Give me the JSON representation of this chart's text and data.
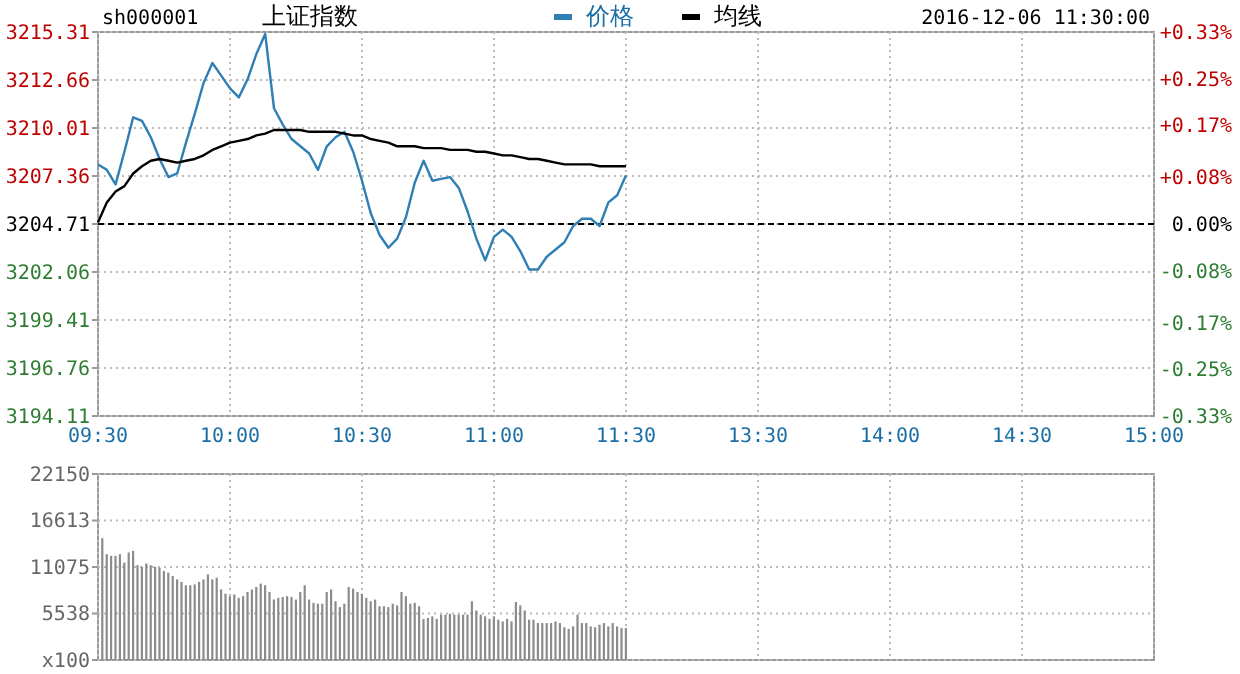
{
  "chart_data": [
    {
      "type": "line",
      "title": "上证指数",
      "subtitle": "sh000001",
      "annotations": [
        "2016-12-06 11:30:00"
      ],
      "categories": [
        "09:30",
        null,
        null,
        null,
        null,
        null,
        null,
        null,
        null,
        null,
        null,
        null,
        null,
        null,
        null,
        "10:00",
        null,
        null,
        null,
        null,
        null,
        null,
        null,
        null,
        null,
        null,
        null,
        null,
        null,
        null,
        "10:30",
        null,
        null,
        null,
        null,
        null,
        null,
        null,
        null,
        null,
        null,
        null,
        null,
        null,
        null,
        "11:00",
        null,
        null,
        null,
        null,
        null,
        null,
        null,
        null,
        null,
        null,
        null,
        null,
        null,
        null,
        "11:30",
        null,
        null,
        null,
        null,
        null,
        null,
        null,
        null,
        null,
        null,
        null,
        null,
        null,
        null,
        "13:30",
        null,
        null,
        null,
        null,
        null,
        null,
        null,
        null,
        null,
        null,
        null,
        null,
        null,
        null,
        "14:00",
        null,
        null,
        null,
        null,
        null,
        null,
        null,
        null,
        null,
        null,
        null,
        null,
        null,
        null,
        "14:30",
        null,
        null,
        null,
        null,
        null,
        null,
        null,
        null,
        null,
        null,
        null,
        null,
        null,
        null,
        "15:00"
      ],
      "ylim": [
        3194.11,
        3215.31
      ],
      "yticks": [
        3194.11,
        3196.76,
        3199.41,
        3202.06,
        3204.71,
        3207.36,
        3210.01,
        3212.66,
        3215.31
      ],
      "y2lim": [
        -0.33,
        0.33
      ],
      "y2ticks": [
        {
          "value": -0.33,
          "label": "-0.33%"
        },
        {
          "value": -0.25,
          "label": "-0.25%"
        },
        {
          "value": -0.17,
          "label": "-0.17%"
        },
        {
          "value": -0.08,
          "label": "-0.08%"
        },
        {
          "value": 0,
          "label": "0.00%"
        },
        {
          "value": 0.08,
          "label": "+0.08%"
        },
        {
          "value": 0.17,
          "label": "+0.17%"
        },
        {
          "value": 0.25,
          "label": "+0.25%"
        },
        {
          "value": 0.33,
          "label": "+0.33%"
        }
      ],
      "grid": true,
      "legend": "top",
      "ref_lines": [
        {
          "axis": "y",
          "value": 3204.71,
          "color": "#000000",
          "line_style": "dashed"
        }
      ],
      "series": [
        {
          "name": "价格",
          "color": "#2f7fb4",
          "values": [
            3208.0,
            3207.7,
            3206.9,
            3208.7,
            3210.6,
            3210.4,
            3209.5,
            3208.3,
            3207.3,
            3207.5,
            3209.2,
            3210.8,
            3212.5,
            3213.6,
            3212.9,
            3212.2,
            3211.7,
            3212.7,
            3214.1,
            3215.2,
            3211.1,
            3210.2,
            3209.4,
            3209.0,
            3208.6,
            3207.7,
            3209.0,
            3209.5,
            3209.8,
            3208.7,
            3207.1,
            3205.3,
            3204.1,
            3203.4,
            3203.9,
            3205.1,
            3207.0,
            3208.2,
            3207.1,
            3207.2,
            3207.3,
            3206.7,
            3205.4,
            3203.9,
            3202.7,
            3204.0,
            3204.4,
            3204.0,
            3203.2,
            3202.2,
            3202.2,
            3202.9,
            3203.3,
            3203.7,
            3204.6,
            3205.0,
            3205.0,
            3204.6,
            3205.9,
            3206.3,
            3207.4,
            null,
            null,
            null,
            null,
            null,
            null,
            null,
            null,
            null,
            null,
            null,
            null,
            null,
            null,
            null,
            null,
            null,
            null,
            null,
            null,
            null,
            null,
            null,
            null,
            null,
            null,
            null,
            null,
            null,
            null,
            null,
            null,
            null,
            null,
            null,
            null,
            null,
            null,
            null,
            null,
            null,
            null,
            null,
            null,
            null,
            null,
            null,
            null,
            null,
            null,
            null,
            null,
            null,
            null,
            null,
            null,
            null,
            null,
            null,
            null
          ]
        },
        {
          "name": "均线",
          "color": "#000000",
          "values": [
            3204.8,
            3205.9,
            3206.5,
            3206.8,
            3207.5,
            3207.9,
            3208.2,
            3208.3,
            3208.2,
            3208.1,
            3208.2,
            3208.3,
            3208.5,
            3208.8,
            3209.0,
            3209.2,
            3209.3,
            3209.4,
            3209.6,
            3209.7,
            3209.9,
            3209.9,
            3209.9,
            3209.9,
            3209.8,
            3209.8,
            3209.8,
            3209.8,
            3209.7,
            3209.6,
            3209.6,
            3209.4,
            3209.3,
            3209.2,
            3209.0,
            3209.0,
            3209.0,
            3208.9,
            3208.9,
            3208.9,
            3208.8,
            3208.8,
            3208.8,
            3208.7,
            3208.7,
            3208.6,
            3208.5,
            3208.5,
            3208.4,
            3208.3,
            3208.3,
            3208.2,
            3208.1,
            3208.0,
            3208.0,
            3208.0,
            3208.0,
            3207.9,
            3207.9,
            3207.9,
            3207.9,
            null,
            null,
            null,
            null,
            null,
            null,
            null,
            null,
            null,
            null,
            null,
            null,
            null,
            null,
            null,
            null,
            null,
            null,
            null,
            null,
            null,
            null,
            null,
            null,
            null,
            null,
            null,
            null,
            null,
            null,
            null,
            null,
            null,
            null,
            null,
            null,
            null,
            null,
            null,
            null,
            null,
            null,
            null,
            null,
            null,
            null,
            null,
            null,
            null,
            null,
            null,
            null,
            null,
            null,
            null,
            null,
            null,
            null,
            null,
            null
          ]
        }
      ]
    },
    {
      "type": "bar",
      "categories": [
        null,
        null,
        null,
        null,
        null,
        null,
        null,
        null,
        null,
        null,
        null,
        null,
        null,
        null,
        null,
        null,
        null,
        null,
        null,
        null,
        null,
        null,
        null,
        null,
        null,
        null,
        null,
        null,
        null,
        null,
        null,
        null,
        null,
        null,
        null,
        null,
        null,
        null,
        null,
        null,
        null,
        null,
        null,
        null,
        null,
        null,
        null,
        null,
        null,
        null,
        null,
        null,
        null,
        null,
        null,
        null,
        null,
        null,
        null,
        null,
        null,
        null,
        null,
        null,
        null,
        null,
        null,
        null,
        null,
        null,
        null,
        null,
        null,
        null,
        null,
        null,
        null,
        null,
        null,
        null,
        null,
        null,
        null,
        null,
        null,
        null,
        null,
        null,
        null,
        null,
        null,
        null,
        null,
        null,
        null,
        null,
        null,
        null,
        null,
        null,
        null,
        null,
        null,
        null,
        null,
        null,
        null,
        null,
        null,
        null,
        null,
        null,
        null,
        null,
        null,
        null,
        null,
        null,
        null,
        null,
        null,
        null,
        null,
        null,
        null,
        null,
        null,
        null,
        null,
        null,
        null,
        null,
        null,
        null,
        null,
        null,
        null,
        null,
        null,
        null,
        null,
        null,
        null,
        null,
        null,
        null,
        null,
        null,
        null,
        null,
        null,
        null,
        null,
        null,
        null,
        null,
        null,
        null,
        null,
        null,
        null,
        null,
        null,
        null,
        null,
        null,
        null,
        null,
        null,
        null,
        null,
        null,
        null,
        null,
        null,
        null,
        null,
        null,
        null,
        null,
        null,
        null,
        null,
        null,
        null,
        null,
        null,
        null,
        null,
        null,
        null,
        null,
        null,
        null,
        null,
        null,
        null,
        null,
        null,
        null,
        null,
        null,
        null,
        null,
        null,
        null,
        null,
        null,
        null,
        null,
        null,
        null,
        null,
        null,
        null,
        null,
        null,
        null,
        null,
        null,
        null,
        null,
        null,
        null,
        null,
        null,
        null,
        null,
        null,
        null,
        null,
        null,
        null,
        null,
        null,
        null,
        null,
        null,
        null,
        null,
        null
      ],
      "ylim": [
        0,
        22150
      ],
      "yticks": [
        {
          "value": 0,
          "label": "x100"
        },
        5538,
        11075,
        16613,
        22150
      ],
      "grid": true,
      "tick_labels": "y",
      "color": "#8c8c8c",
      "values": [
        null,
        14500,
        12600,
        12400,
        12400,
        12600,
        11600,
        12800,
        13000,
        11300,
        11100,
        11500,
        11300,
        11100,
        11000,
        10600,
        10400,
        10000,
        9600,
        9300,
        8900,
        8900,
        9000,
        9300,
        9600,
        10200,
        9600,
        9800,
        8400,
        7900,
        7600,
        7800,
        7400,
        7600,
        8100,
        8400,
        8700,
        9100,
        8900,
        8100,
        7200,
        7400,
        7500,
        7600,
        7500,
        7200,
        8100,
        8900,
        7200,
        6800,
        6700,
        6700,
        8100,
        8400,
        7000,
        6300,
        6700,
        8700,
        8500,
        8100,
        7900,
        7400,
        7000,
        7200,
        6400,
        6400,
        6300,
        6700,
        6500,
        8100,
        7600,
        6700,
        6800,
        6400,
        4900,
        5000,
        5200,
        4900,
        5400,
        5400,
        5500,
        5400,
        5400,
        5400,
        5400,
        7000,
        5900,
        5400,
        5200,
        4900,
        5200,
        4800,
        4600,
        4900,
        4600,
        6900,
        6500,
        5900,
        4800,
        4800,
        4400,
        4400,
        4400,
        4400,
        4600,
        4400,
        3900,
        3700,
        4000,
        5400,
        4400,
        4400,
        4000,
        3900,
        4200,
        4400,
        4000,
        4400,
        4000,
        3800,
        3800,
        null,
        null,
        null,
        null,
        null,
        null,
        null,
        null,
        null,
        null,
        null,
        null,
        null,
        null,
        null,
        null,
        null,
        null,
        null,
        null,
        null,
        null,
        null,
        null,
        null,
        null,
        null,
        null,
        null,
        null,
        null,
        null,
        null,
        null,
        null,
        null,
        null,
        null,
        null,
        null,
        null,
        null,
        null,
        null,
        null,
        null,
        null,
        null,
        null,
        null,
        null,
        null,
        null,
        null,
        null,
        null,
        null,
        null,
        null,
        null,
        null,
        null,
        null,
        null,
        null,
        null,
        null,
        null,
        null,
        null,
        null,
        null,
        null,
        null,
        null,
        null,
        null,
        null,
        null,
        null,
        null,
        null,
        null,
        null,
        null,
        null,
        null,
        null,
        null,
        null,
        null,
        null,
        null,
        null,
        null,
        null,
        null,
        null,
        null,
        null,
        null,
        null,
        null,
        null,
        null,
        null,
        null,
        null,
        null,
        null,
        null,
        null,
        null,
        null,
        null,
        null,
        null,
        null,
        null,
        null
      ]
    }
  ]
}
